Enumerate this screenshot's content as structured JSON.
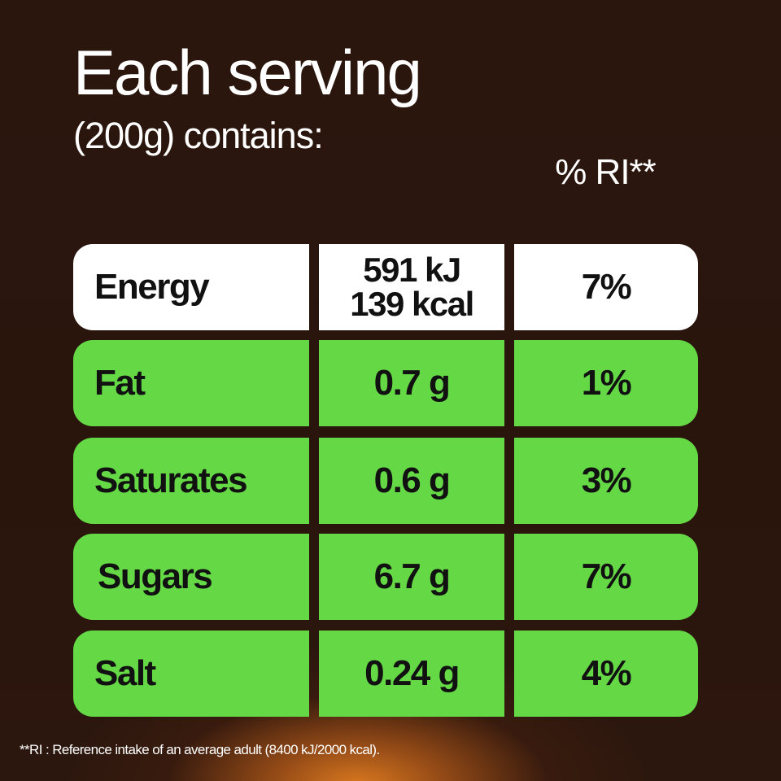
{
  "header": {
    "title": "Each serving",
    "subtitle": "(200g) contains:",
    "ri_column_label": "% RI**"
  },
  "energy": {
    "label": "Energy",
    "kj": "591 kJ",
    "kcal": "139 kcal",
    "ri": "7%"
  },
  "nutrients": [
    {
      "label": "Fat",
      "amount": "0.7 g",
      "ri": "1%"
    },
    {
      "label": "Saturates",
      "amount": "0.6 g",
      "ri": "3%"
    },
    {
      "label": "Sugars",
      "amount": "6.7 g",
      "ri": "7%"
    },
    {
      "label": "Salt",
      "amount": "0.24 g",
      "ri": "4%"
    }
  ],
  "footnote": "**RI : Reference intake of an average adult (8400 kJ/2000 kcal).",
  "colors": {
    "background": "#2a160e",
    "energy_row": "#ffffff",
    "nutrient_row": "#65d846",
    "glow": "#e27d20",
    "text_dark": "#111111",
    "text_light": "#ffffff"
  }
}
